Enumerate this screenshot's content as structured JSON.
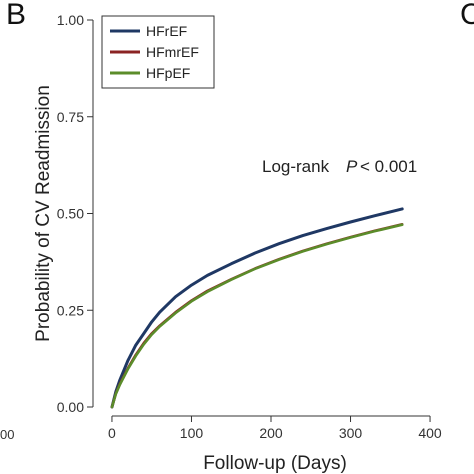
{
  "panel_labels": {
    "main": "B",
    "next": "C",
    "prev_tick": "00"
  },
  "annotation": {
    "prefix": "Log-rank",
    "p_symbol": "P",
    "value": "< 0.001"
  },
  "colors": {
    "HFrEF": "#1f3864",
    "HFmrEF": "#8b2323",
    "HFpEF": "#5b8c2a",
    "axis": "#333333",
    "legend_border": "#333333"
  },
  "chart_data": {
    "type": "line",
    "xlabel": "Follow-up (Days)",
    "ylabel": "Probability of CV Readmission",
    "xlim": [
      -10,
      410
    ],
    "ylim": [
      0,
      1
    ],
    "xticks": [
      0,
      100,
      200,
      300,
      400
    ],
    "yticks": [
      0,
      0.25,
      0.5,
      0.75,
      1.0
    ],
    "ytick_labels": [
      "0.00",
      "0.25",
      "0.50",
      "0.75",
      "1.00"
    ],
    "grid": false,
    "legend_position": "top-left",
    "series": [
      {
        "name": "HFrEF",
        "x": [
          0,
          5,
          10,
          20,
          30,
          40,
          50,
          60,
          80,
          100,
          120,
          150,
          180,
          210,
          240,
          270,
          300,
          330,
          365
        ],
        "y": [
          0.0,
          0.04,
          0.07,
          0.12,
          0.16,
          0.19,
          0.22,
          0.245,
          0.285,
          0.315,
          0.34,
          0.37,
          0.398,
          0.422,
          0.443,
          0.461,
          0.478,
          0.494,
          0.512
        ]
      },
      {
        "name": "HFmrEF",
        "x": [
          0,
          5,
          10,
          20,
          30,
          40,
          50,
          60,
          80,
          100,
          120,
          150,
          180,
          210,
          240,
          270,
          300,
          330,
          365
        ],
        "y": [
          0.0,
          0.035,
          0.06,
          0.1,
          0.135,
          0.165,
          0.19,
          0.21,
          0.245,
          0.275,
          0.3,
          0.33,
          0.358,
          0.382,
          0.403,
          0.422,
          0.439,
          0.455,
          0.472
        ]
      },
      {
        "name": "HFpEF",
        "x": [
          0,
          5,
          10,
          20,
          30,
          40,
          50,
          60,
          80,
          100,
          120,
          150,
          180,
          210,
          240,
          270,
          300,
          330,
          365
        ],
        "y": [
          0.0,
          0.034,
          0.058,
          0.098,
          0.132,
          0.162,
          0.187,
          0.208,
          0.243,
          0.273,
          0.298,
          0.329,
          0.357,
          0.381,
          0.402,
          0.421,
          0.438,
          0.454,
          0.471
        ]
      }
    ]
  }
}
